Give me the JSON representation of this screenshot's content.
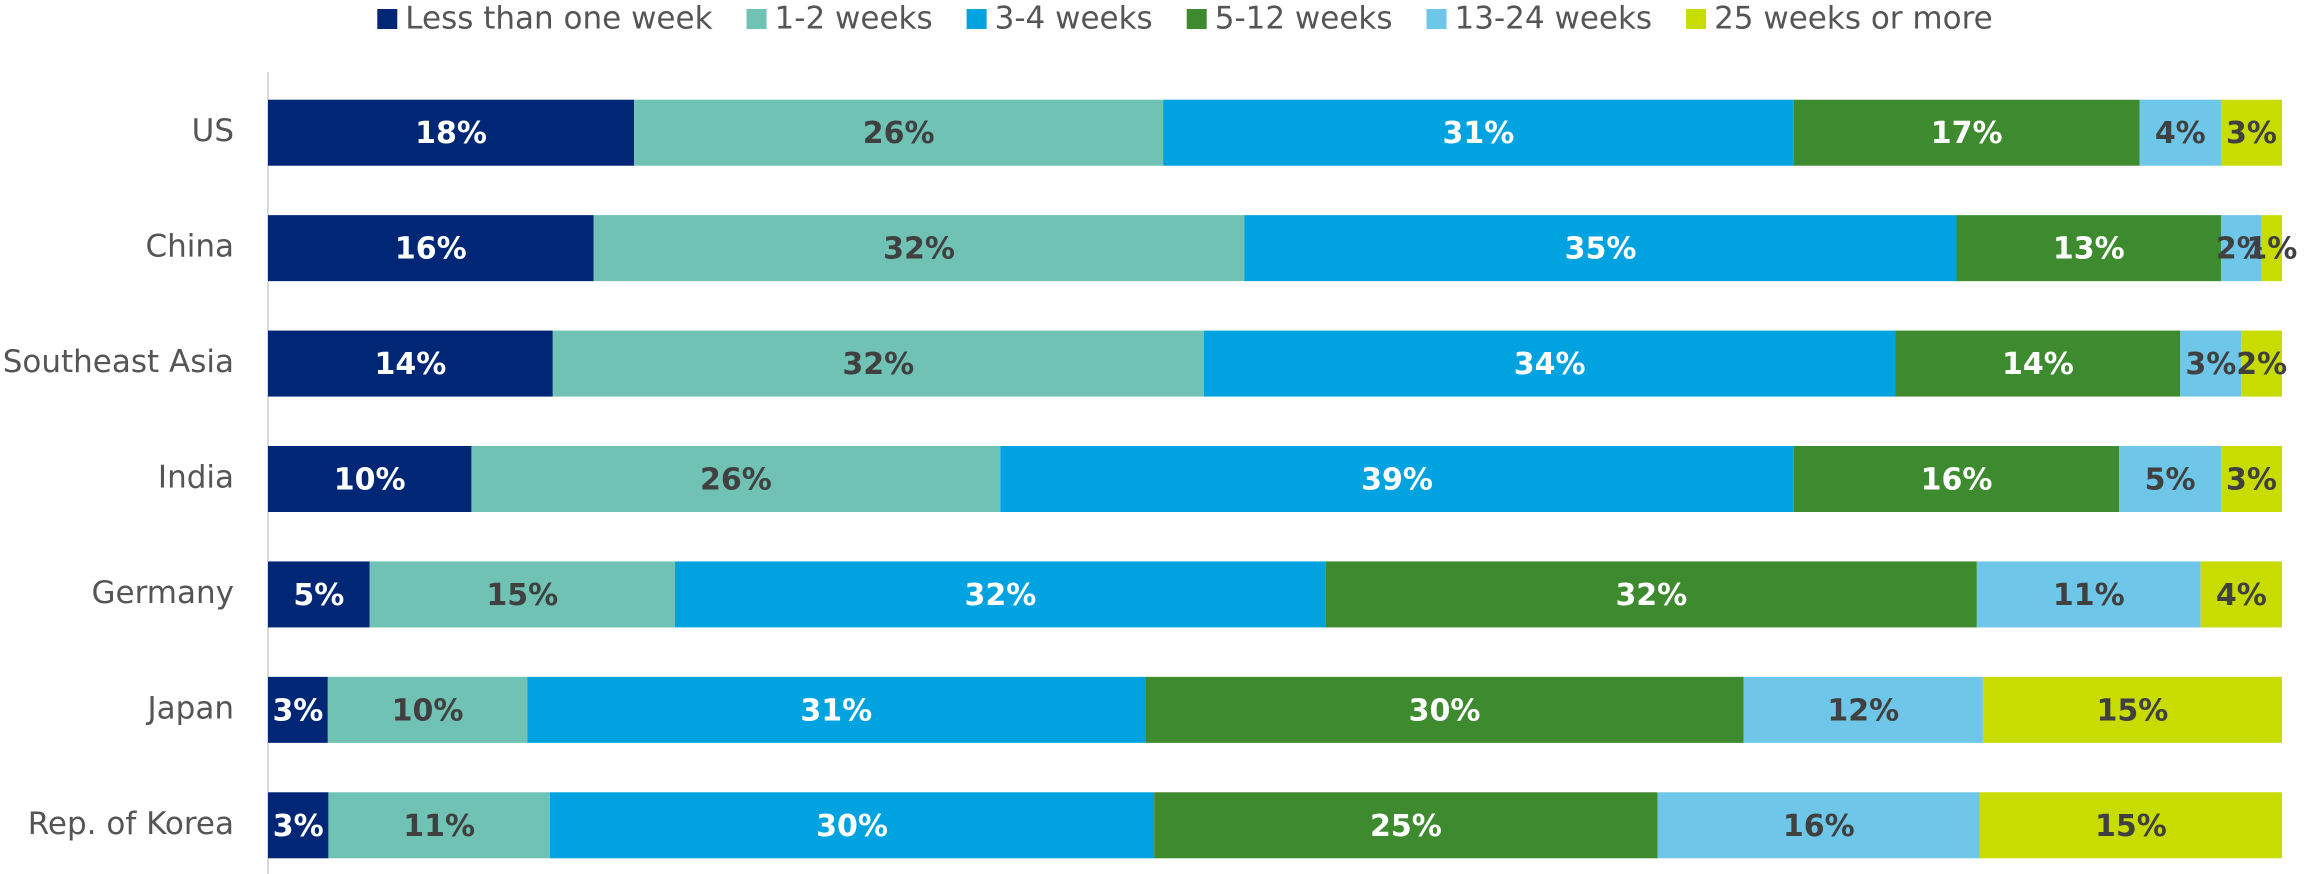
{
  "chart_data": {
    "type": "bar",
    "orientation": "horizontal",
    "stacking": "percent",
    "categories": [
      "US",
      "China",
      "Southeast Asia",
      "India",
      "Germany",
      "Japan",
      "Rep. of Korea"
    ],
    "series": [
      {
        "name": "Less than one week",
        "color": "#002776",
        "label_color": "#ffffff",
        "values": [
          18,
          16,
          14,
          10,
          5,
          3,
          3
        ],
        "value_labels": [
          "18%",
          "16%",
          "14%",
          "10%",
          "5%",
          "3%",
          "3%"
        ]
      },
      {
        "name": "1-2 weeks",
        "color": "#6fc2b4",
        "label_color": "#404040",
        "values": [
          26,
          32,
          32,
          26,
          15,
          10,
          11
        ],
        "value_labels": [
          "26%",
          "32%",
          "32%",
          "26%",
          "15%",
          "10%",
          "11%"
        ]
      },
      {
        "name": "3-4 weeks",
        "color": "#00a3e0",
        "label_color": "#ffffff",
        "values": [
          31,
          35,
          34,
          39,
          32,
          31,
          30
        ],
        "value_labels": [
          "31%",
          "35%",
          "34%",
          "39%",
          "32%",
          "31%",
          "30%"
        ]
      },
      {
        "name": "5-12 weeks",
        "color": "#3d8a2f",
        "label_color": "#ffffff",
        "values": [
          17,
          13,
          14,
          16,
          32,
          30,
          25
        ],
        "value_labels": [
          "17%",
          "13%",
          "14%",
          "16%",
          "32%",
          "30%",
          "25%"
        ]
      },
      {
        "name": "13-24 weeks",
        "color": "#6ec6e8",
        "label_color": "#404040",
        "values": [
          4,
          2,
          3,
          5,
          11,
          12,
          16
        ],
        "value_labels": [
          "4%",
          "2%",
          "3%",
          "5%",
          "11%",
          "12%",
          "16%"
        ]
      },
      {
        "name": "25 weeks or more",
        "color": "#c8dc00",
        "label_color": "#404040",
        "values": [
          3,
          1,
          2,
          3,
          4,
          15,
          15
        ],
        "value_labels": [
          "3%",
          "1%",
          "2%",
          "3%",
          "4%",
          "15%",
          "15%"
        ]
      }
    ],
    "legend": "top"
  }
}
